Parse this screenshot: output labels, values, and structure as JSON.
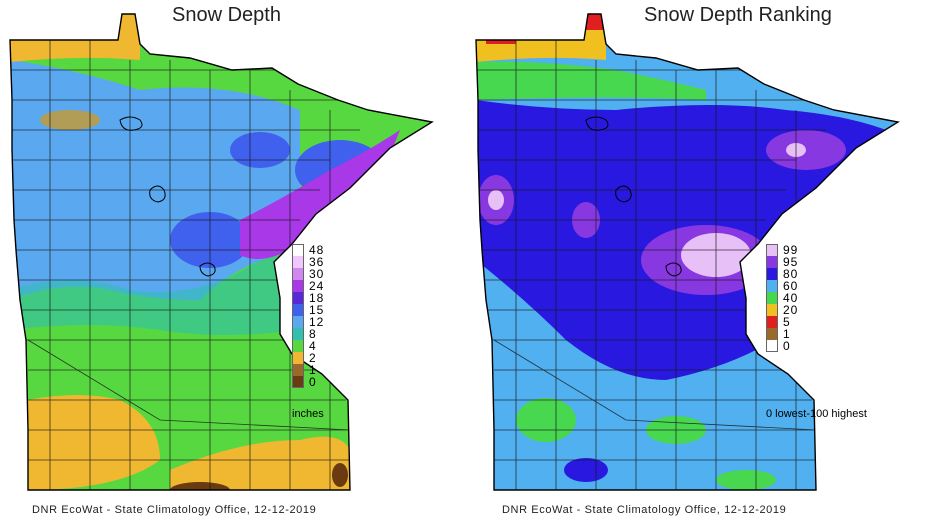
{
  "left_map": {
    "title": "Snow Depth",
    "legend": [
      {
        "label": "48",
        "color": "#ffffff"
      },
      {
        "label": "36",
        "color": "#f0c8ff"
      },
      {
        "label": "30",
        "color": "#d088f0"
      },
      {
        "label": "24",
        "color": "#a838e8"
      },
      {
        "label": "18",
        "color": "#5a28d8"
      },
      {
        "label": "15",
        "color": "#4060ee"
      },
      {
        "label": "12",
        "color": "#5aa8f0"
      },
      {
        "label": "8",
        "color": "#30c0b0"
      },
      {
        "label": "4",
        "color": "#58d840"
      },
      {
        "label": "2",
        "color": "#f0b830"
      },
      {
        "label": "1",
        "color": "#9a6a2a"
      },
      {
        "label": "0",
        "color": "#6a3a10"
      }
    ],
    "legend_caption": "inches",
    "credit": "DNR EcoWat - State Climatology Office, 12-12-2019"
  },
  "right_map": {
    "title": "Snow Depth Ranking",
    "legend": [
      {
        "label": "99",
        "color": "#e8c0f8"
      },
      {
        "label": "95",
        "color": "#8838e0"
      },
      {
        "label": "80",
        "color": "#2818e0"
      },
      {
        "label": "60",
        "color": "#50b0f0"
      },
      {
        "label": "40",
        "color": "#48d850"
      },
      {
        "label": "20",
        "color": "#f0c020"
      },
      {
        "label": "5",
        "color": "#e02020"
      },
      {
        "label": "1",
        "color": "#9a6a2a"
      },
      {
        "label": "0",
        "color": "#ffffff"
      }
    ],
    "legend_caption": "0 lowest-100 highest",
    "credit": "DNR EcoWat - State Climatology Office, 12-12-2019"
  }
}
